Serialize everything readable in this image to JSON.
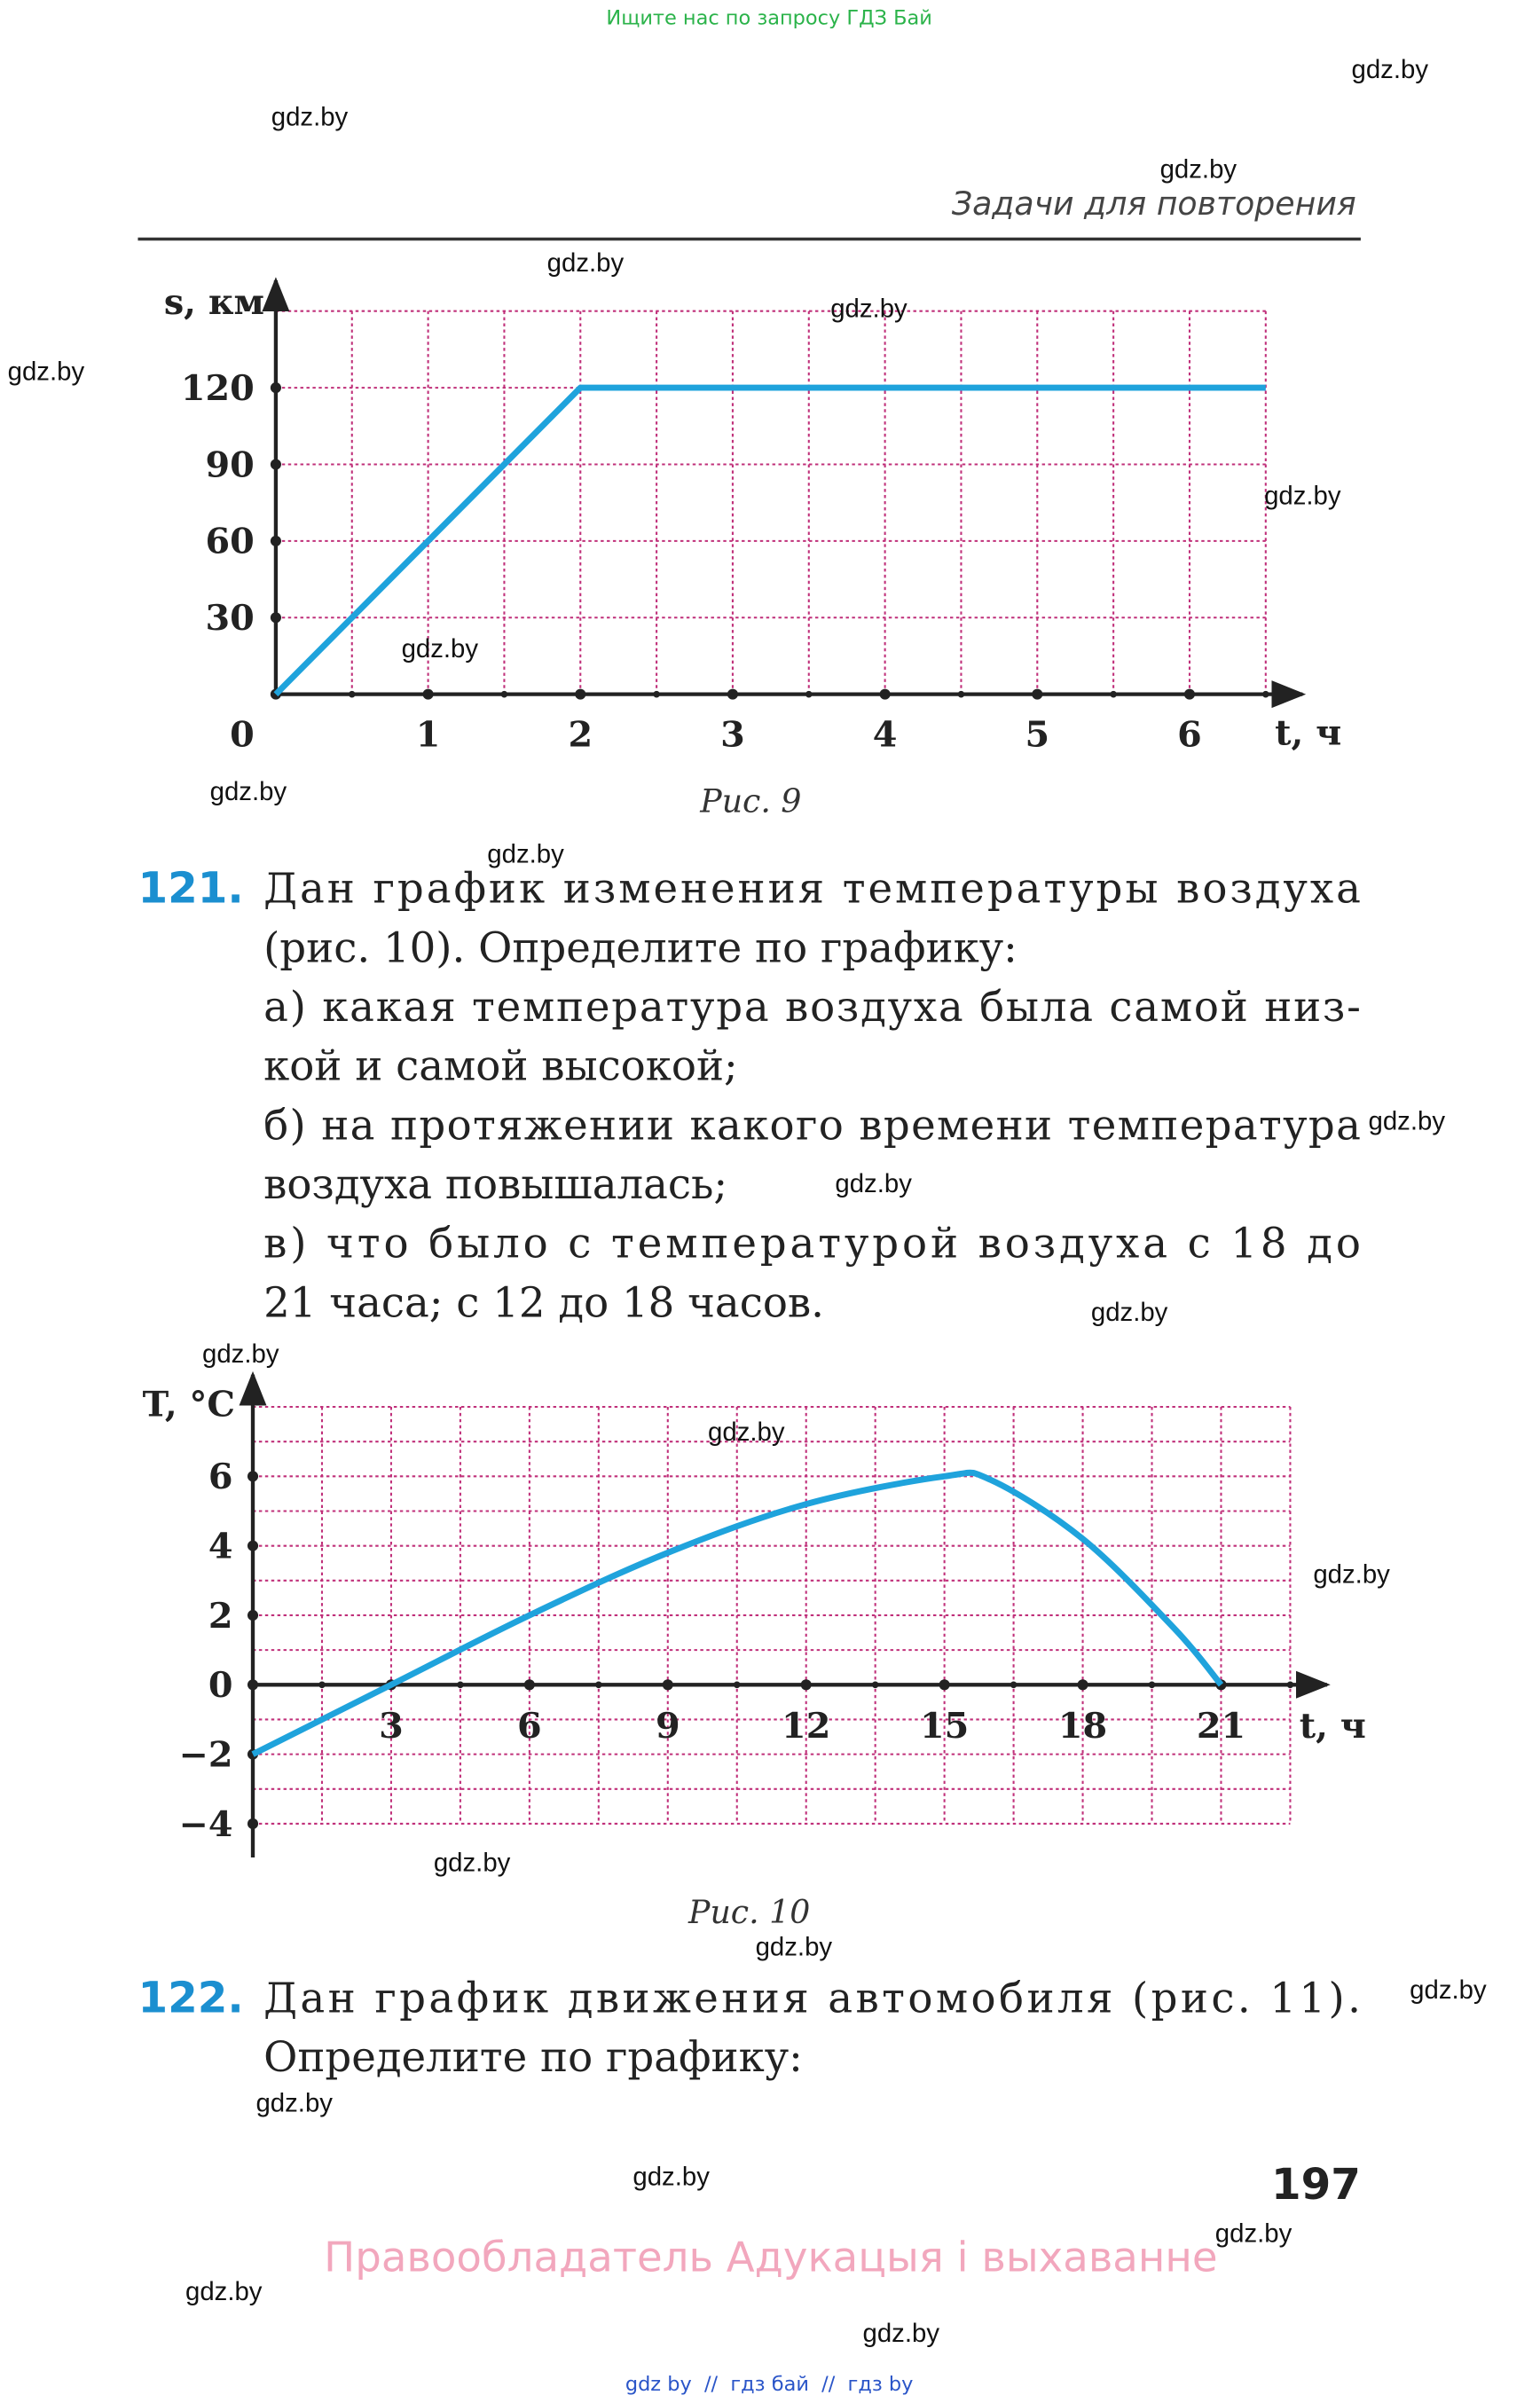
{
  "top_banner": "Ищите нас по запросу ГДЗ Бай",
  "header": {
    "section": "Задачи для повторения"
  },
  "chart_data": [
    {
      "type": "line",
      "caption": "Рис. 9",
      "y_label": "s, км",
      "x_label": "t, ч",
      "x": [
        0,
        2,
        6.5
      ],
      "series": [
        {
          "color": "#1fa3dc",
          "values": [
            0,
            120,
            120
          ]
        }
      ],
      "xlim": [
        0,
        6.5
      ],
      "ylim": [
        0,
        150
      ],
      "xticks": [
        0,
        1,
        2,
        3,
        4,
        5,
        6
      ],
      "yticks": [
        30,
        60,
        90,
        120
      ],
      "grid": {
        "x_step": 0.5,
        "y_step": 30,
        "color": "#c0307a"
      }
    },
    {
      "type": "line",
      "caption": "Рис. 10",
      "y_label": "T, °C",
      "x_label": "t, ч",
      "x": [
        0,
        3,
        6,
        9,
        12,
        15,
        16,
        18,
        20,
        21
      ],
      "series": [
        {
          "color": "#1fa3dc",
          "values": [
            -2,
            0,
            2,
            3.8,
            5.2,
            6,
            5.9,
            4.2,
            1.6,
            0
          ]
        }
      ],
      "xlim": [
        0,
        22.5
      ],
      "ylim": [
        -4,
        8
      ],
      "xticks": [
        3,
        6,
        9,
        12,
        15,
        18,
        21
      ],
      "yticks": [
        {
          "value": -4,
          "label": "−4"
        },
        {
          "value": -2,
          "label": "−2"
        },
        0,
        2,
        4,
        6
      ],
      "grid": {
        "x_step": 1.5,
        "y_step": 1,
        "color": "#c0307a"
      }
    }
  ],
  "problems": [
    {
      "number": "121.",
      "lines": [
        "Дан график изменения температуры воздуха",
        "(рис. 10). Определите по графику:",
        "а) какая температура воздуха была самой низ-",
        "кой и самой высокой;",
        "б) на протяжении какого времени температура",
        "воздуха повышалась;",
        "в) что было с температурой воздуха с 18 до",
        "21 часа; с 12 до 18 часов."
      ]
    },
    {
      "number": "122.",
      "lines": [
        "Дан график движения автомобиля (рис. 11).",
        "Определите по графику:"
      ]
    }
  ],
  "page_number": 197,
  "footer": {
    "rights": "Правообладатель Адукацыя і выхаванне",
    "links": "gdz by  //  гдз бай  //  гдз by"
  },
  "watermarks": [
    "gdz.by",
    "gdz.by",
    "gdz.by",
    "gdz.by",
    "gdz.by",
    "gdz.by",
    "gdz.by",
    "gdz.by",
    "gdz.by",
    "gdz.by",
    "gdz.by",
    "gdz.by",
    "gdz.by",
    "gdz.by",
    "gdz.by",
    "gdz.by",
    "gdz.by",
    "gdz.by",
    "gdz.by",
    "gdz.by",
    "gdz.by",
    "gdz.by",
    "gdz.by",
    "gdz.by"
  ]
}
